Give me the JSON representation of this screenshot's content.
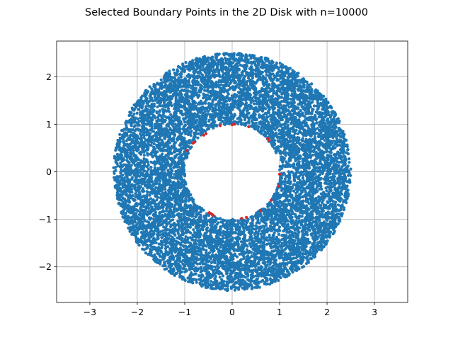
{
  "chart_data": {
    "type": "scatter",
    "title": "Selected Boundary Points in the 2D Disk with n=10000",
    "xlabel": "",
    "ylabel": "",
    "xlim": [
      -3.7,
      3.7
    ],
    "ylim": [
      -2.75,
      2.75
    ],
    "xticks": [
      -3,
      -2,
      -1,
      0,
      1,
      2,
      3
    ],
    "yticks": [
      -2,
      -1,
      0,
      1,
      2
    ],
    "xtick_labels": [
      "−3",
      "−2",
      "−1",
      "0",
      "1",
      "2",
      "3"
    ],
    "ytick_labels": [
      "−2",
      "−1",
      "0",
      "1",
      "2"
    ],
    "grid": true,
    "aspect": "equal",
    "series": [
      {
        "role": "all-points",
        "color": "#1f77b4",
        "n": 10000,
        "distribution": "uniform annulus",
        "inner_radius": 1.0,
        "outer_radius": 2.5
      },
      {
        "role": "selected-boundary",
        "color": "#d62728",
        "points": [
          [
            -0.95,
            0.45
          ],
          [
            -0.8,
            0.62
          ],
          [
            -0.83,
            0.6
          ],
          [
            -0.6,
            0.77
          ],
          [
            -0.55,
            0.8
          ],
          [
            -0.25,
            0.97
          ],
          [
            0.05,
            1.0
          ],
          [
            0.0,
            0.99
          ],
          [
            0.35,
            0.95
          ],
          [
            0.75,
            0.7
          ],
          [
            0.78,
            0.66
          ],
          [
            1.0,
            -0.05
          ],
          [
            0.98,
            -0.3
          ],
          [
            0.82,
            -0.6
          ],
          [
            0.6,
            -0.82
          ],
          [
            0.3,
            -0.96
          ],
          [
            0.2,
            -0.98
          ],
          [
            -0.42,
            -0.9
          ],
          [
            -0.45,
            -0.88
          ],
          [
            -0.48,
            -0.86
          ],
          [
            -0.4,
            -0.92
          ]
        ]
      }
    ]
  }
}
